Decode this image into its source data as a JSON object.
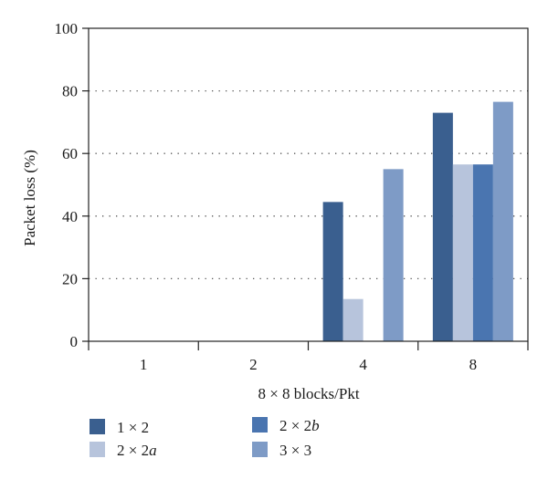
{
  "chart_data": {
    "type": "bar",
    "title": "",
    "xlabel": "8 × 8 blocks/Pkt",
    "ylabel": "Packet loss (%)",
    "ylim": [
      0,
      100
    ],
    "yticks": [
      "0",
      "20",
      "40",
      "60",
      "80",
      "100"
    ],
    "grid": "horizontal-dotted",
    "legend_position": "bottom",
    "categories": [
      "1",
      "2",
      "4",
      "8"
    ],
    "series": [
      {
        "name": "1 × 2",
        "color": "#3a5f8f",
        "values": [
          0,
          0,
          44.5,
          73
        ]
      },
      {
        "name": "2 × 2a",
        "color": "#b7c4dc",
        "values": [
          0,
          0,
          13.5,
          56.5
        ]
      },
      {
        "name": "2 × 2b",
        "color": "#4a75b0",
        "values": [
          0,
          0,
          0,
          56.5
        ]
      },
      {
        "name": "3 × 3",
        "color": "#7e9bc6",
        "values": [
          0,
          0,
          55,
          76.5
        ]
      }
    ]
  }
}
